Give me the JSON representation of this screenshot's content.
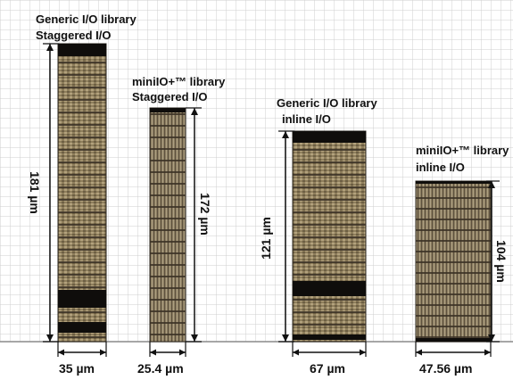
{
  "blocks": [
    {
      "id": "generic-staggered",
      "title_line1": "Generic I/O library",
      "title_line2": "Staggered I/O",
      "width_label": "35 µm",
      "height_label": "181 µm"
    },
    {
      "id": "miniio-staggered",
      "title_line1": "miniIO+™ library",
      "title_line2": "Staggered I/O",
      "width_label": "25.4 µm",
      "height_label": "172 µm"
    },
    {
      "id": "generic-inline",
      "title_line1": "Generic I/O library",
      "title_line2": "inline I/O",
      "width_label": "67 µm",
      "height_label": "121 µm"
    },
    {
      "id": "miniio-inline",
      "title_line1": "miniIO+™ library",
      "title_line2": "inline I/O",
      "width_label": "47.56 µm",
      "height_label": "104 µm"
    }
  ],
  "colors": {
    "grid": "#c8c8c8",
    "background": "#ffffff",
    "die_base": "#8a7a58",
    "die_stripe": "#3b3126",
    "die_dark": "#0f0d0b",
    "die_light": "#b7a98b",
    "dim_line": "#111111"
  }
}
